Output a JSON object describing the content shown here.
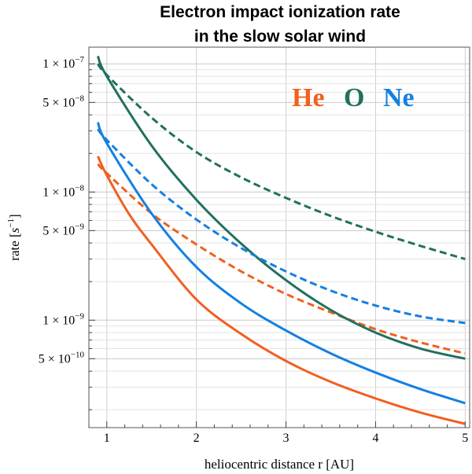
{
  "chart_data": {
    "type": "line",
    "title_line1": "Electron impact ionization rate",
    "title_line2": "in the slow solar wind",
    "xlabel": "heliocentric distance r [AU]",
    "ylabel_text": "rate [",
    "ylabel_unit": "s",
    "ylabel_exp": "−1",
    "ylabel_close": "]",
    "yscale": "log",
    "xlim": [
      0.8,
      5.05
    ],
    "ylim": [
      1.45e-10,
      1.35e-07
    ],
    "grid": true,
    "x_ticks": [
      {
        "value": 1,
        "label": "1"
      },
      {
        "value": 2,
        "label": "2"
      },
      {
        "value": 3,
        "label": "3"
      },
      {
        "value": 4,
        "label": "4"
      },
      {
        "value": 5,
        "label": "5"
      }
    ],
    "y_ticks": [
      {
        "value": 1e-07,
        "mant": "1",
        "exp": "−7"
      },
      {
        "value": 5e-08,
        "mant": "5",
        "exp": "−8"
      },
      {
        "value": 1e-08,
        "mant": "1",
        "exp": "−8"
      },
      {
        "value": 5e-09,
        "mant": "5",
        "exp": "−9"
      },
      {
        "value": 1e-09,
        "mant": "1",
        "exp": "−9"
      },
      {
        "value": 5e-10,
        "mant": "5",
        "exp": "−10"
      }
    ],
    "legend": {
      "placement": "top-right",
      "entries": [
        {
          "label": "He",
          "color": "#f06020"
        },
        {
          "label": "O",
          "color": "#22705f"
        },
        {
          "label": "Ne",
          "color": "#1480e0"
        }
      ]
    },
    "series": [
      {
        "element": "He",
        "style": "solid",
        "color": "#f06020",
        "x": [
          0.9,
          1.0,
          1.25,
          1.5,
          2.0,
          2.5,
          3.0,
          3.5,
          4.0,
          4.5,
          5.0
        ],
        "y": [
          1.9e-08,
          1.35e-08,
          6.7e-09,
          3.9e-09,
          1.45e-09,
          7.8e-10,
          4.8e-10,
          3.3e-10,
          2.45e-10,
          1.9e-10,
          1.55e-10
        ]
      },
      {
        "element": "He",
        "style": "dashed",
        "color": "#f06020",
        "x": [
          0.9,
          1.0,
          1.5,
          2.0,
          2.5,
          3.0,
          3.5,
          4.0,
          4.5,
          5.0
        ],
        "y": [
          1.65e-08,
          1.4e-08,
          6.8e-09,
          3.9e-09,
          2.4e-09,
          1.6e-09,
          1.15e-09,
          8.5e-10,
          6.7e-10,
          5.5e-10
        ]
      },
      {
        "element": "O",
        "style": "solid",
        "color": "#22705f",
        "x": [
          0.9,
          1.0,
          1.5,
          2.0,
          2.5,
          3.0,
          3.5,
          4.0,
          4.5,
          5.0
        ],
        "y": [
          1.15e-07,
          8e-08,
          2.3e-08,
          8.7e-09,
          3.95e-09,
          2.05e-09,
          1.2e-09,
          8e-10,
          6e-10,
          5e-10
        ]
      },
      {
        "element": "O",
        "style": "dashed",
        "color": "#22705f",
        "x": [
          0.9,
          1.0,
          1.5,
          2.0,
          2.5,
          3.0,
          3.5,
          4.0,
          4.5,
          5.0
        ],
        "y": [
          1e-07,
          8.2e-08,
          3.8e-08,
          2.05e-08,
          1.3e-08,
          9e-09,
          6.5e-09,
          4.9e-09,
          3.8e-09,
          3e-09
        ]
      },
      {
        "element": "Ne",
        "style": "solid",
        "color": "#1480e0",
        "x": [
          0.9,
          1.0,
          1.5,
          2.0,
          2.5,
          3.0,
          3.5,
          4.0,
          4.5,
          5.0
        ],
        "y": [
          3.5e-08,
          2.4e-08,
          6.8e-09,
          2.6e-09,
          1.35e-09,
          8.3e-10,
          5.5e-10,
          3.9e-10,
          2.9e-10,
          2.25e-10
        ]
      },
      {
        "element": "Ne",
        "style": "dashed",
        "color": "#1480e0",
        "x": [
          0.9,
          1.0,
          1.5,
          2.0,
          2.5,
          3.0,
          3.5,
          4.0,
          4.5,
          5.0
        ],
        "y": [
          3.1e-08,
          2.55e-08,
          1.15e-08,
          6.1e-09,
          3.65e-09,
          2.4e-09,
          1.7e-09,
          1.3e-09,
          1.07e-09,
          9.5e-10
        ]
      }
    ]
  }
}
